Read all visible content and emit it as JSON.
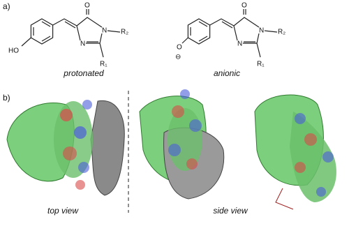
{
  "panel_a": {
    "label": "a)",
    "molecules": [
      {
        "caption": "protonated",
        "atoms": {
          "phenol_o": "HO",
          "carbonyl_o": "O",
          "n3": "N",
          "r2": "R₂",
          "n1": "N",
          "r1": "R₁"
        }
      },
      {
        "caption": "anionic",
        "atoms": {
          "phenol_o": "O",
          "charge": "⊖",
          "carbonyl_o": "O",
          "n3": "N",
          "r2": "R₂",
          "n1": "N",
          "r1": "R₁"
        }
      }
    ]
  },
  "panel_b": {
    "label": "b)",
    "captions": [
      "top view",
      "side view"
    ]
  }
}
